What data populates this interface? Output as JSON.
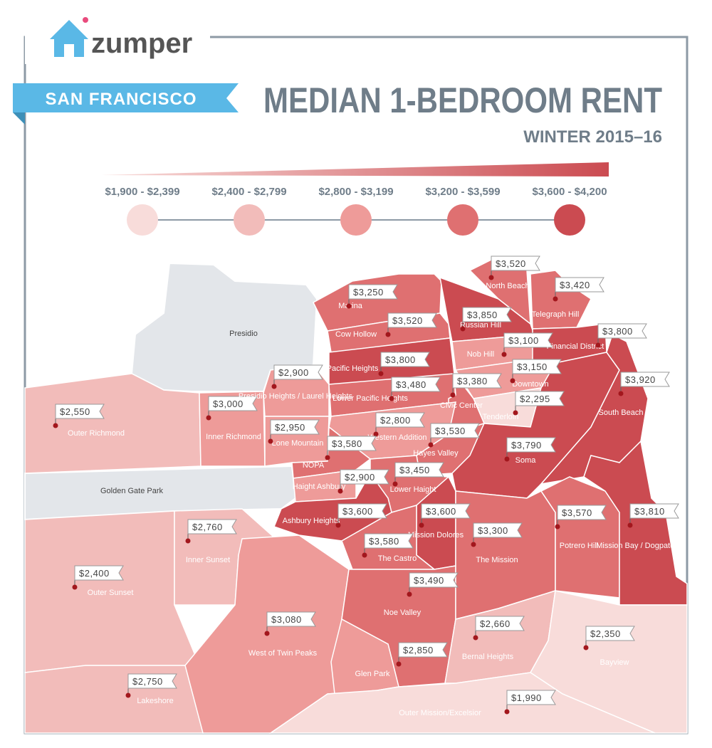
{
  "header": {
    "brand": "zumper",
    "city": "SAN FRANCISCO",
    "title": "MEDIAN 1-BEDROOM RENT",
    "subtitle": "WINTER 2015–16"
  },
  "legend": [
    {
      "label": "$1,900 - $2,399",
      "color": "#f8dcda"
    },
    {
      "label": "$2,400 - $2,799",
      "color": "#f2bcba"
    },
    {
      "label": "$2,800 - $3,199",
      "color": "#ee9b99"
    },
    {
      "label": "$3,200 - $3,599",
      "color": "#df7071"
    },
    {
      "label": "$3,600 - $4,200",
      "color": "#cb4b51"
    }
  ],
  "areas": [
    {
      "name": "Presidio",
      "color": "#e3e6ea"
    },
    {
      "name": "Golden Gate Park",
      "color": "#e3e6ea"
    }
  ],
  "neighborhoods": [
    {
      "name": "Outer Richmond",
      "price": "$2,550",
      "color": "#f2bcba"
    },
    {
      "name": "Inner Richmond",
      "price": "$3,000",
      "color": "#ee9b99"
    },
    {
      "name": "Presidio Heights / Laurel Heights",
      "price": "$2,900",
      "color": "#ee9b99"
    },
    {
      "name": "Lone Mountain",
      "price": "$2,950",
      "color": "#ee9b99"
    },
    {
      "name": "Outer Sunset",
      "price": "$2,400",
      "color": "#f2bcba"
    },
    {
      "name": "Inner Sunset",
      "price": "$2,760",
      "color": "#f2bcba"
    },
    {
      "name": "Lakeshore",
      "price": "$2,750",
      "color": "#f2bcba"
    },
    {
      "name": "West of Twin Peaks",
      "price": "$3,080",
      "color": "#ee9b99"
    },
    {
      "name": "Marina",
      "price": "$3,250",
      "color": "#df7071"
    },
    {
      "name": "Cow Hollow",
      "price": "$3,520",
      "color": "#df7071"
    },
    {
      "name": "Pacific Heights",
      "price": "$3,800",
      "color": "#cb4b51"
    },
    {
      "name": "Lower Pacific Heights",
      "price": "$3,480",
      "color": "#df7071"
    },
    {
      "name": "Russian Hill",
      "price": "$3,850",
      "color": "#cb4b51"
    },
    {
      "name": "North Beach",
      "price": "$3,520",
      "color": "#df7071"
    },
    {
      "name": "Telegraph Hill",
      "price": "$3,420",
      "color": "#df7071"
    },
    {
      "name": "Nob Hill",
      "price": "$3,100",
      "color": "#ee9b99"
    },
    {
      "name": "Financial District",
      "price": "$3,800",
      "color": "#cb4b51"
    },
    {
      "name": "Downtown",
      "price": "$3,150",
      "color": "#ee9b99"
    },
    {
      "name": "Tenderloin",
      "price": "$2,295",
      "color": "#f8dcda"
    },
    {
      "name": "Civic Center",
      "price": "$3,380",
      "color": "#df7071"
    },
    {
      "name": "Western Addition",
      "price": "$2,800",
      "color": "#ee9b99"
    },
    {
      "name": "NOPA",
      "price": "$3,580",
      "color": "#df7071"
    },
    {
      "name": "Haight Ashbury",
      "price": "$2,900",
      "color": "#ee9b99"
    },
    {
      "name": "Hayes Valley",
      "price": "$3,530",
      "color": "#df7071"
    },
    {
      "name": "Lower Haight",
      "price": "$3,450",
      "color": "#df7071"
    },
    {
      "name": "Ashbury Heights",
      "price": "$3,600",
      "color": "#cb4b51"
    },
    {
      "name": "Soma",
      "price": "$3,790",
      "color": "#cb4b51"
    },
    {
      "name": "South Beach",
      "price": "$3,920",
      "color": "#cb4b51"
    },
    {
      "name": "Mission Dolores",
      "price": "$3,600",
      "color": "#cb4b51"
    },
    {
      "name": "The Castro",
      "price": "$3,580",
      "color": "#df7071"
    },
    {
      "name": "Noe Valley",
      "price": "$3,490",
      "color": "#df7071"
    },
    {
      "name": "The Mission",
      "price": "$3,300",
      "color": "#df7071"
    },
    {
      "name": "Potrero Hill",
      "price": "$3,570",
      "color": "#df7071"
    },
    {
      "name": "Mission Bay / Dogpatch",
      "price": "$3,810",
      "color": "#cb4b51"
    },
    {
      "name": "Bernal Heights",
      "price": "$2,660",
      "color": "#f2bcba"
    },
    {
      "name": "Glen Park",
      "price": "$2,850",
      "color": "#ee9b99"
    },
    {
      "name": "Bayview",
      "price": "$2,350",
      "color": "#f8dcda"
    },
    {
      "name": "Outer Mission/Excelsior",
      "price": "$1,990",
      "color": "#f8dcda"
    }
  ]
}
